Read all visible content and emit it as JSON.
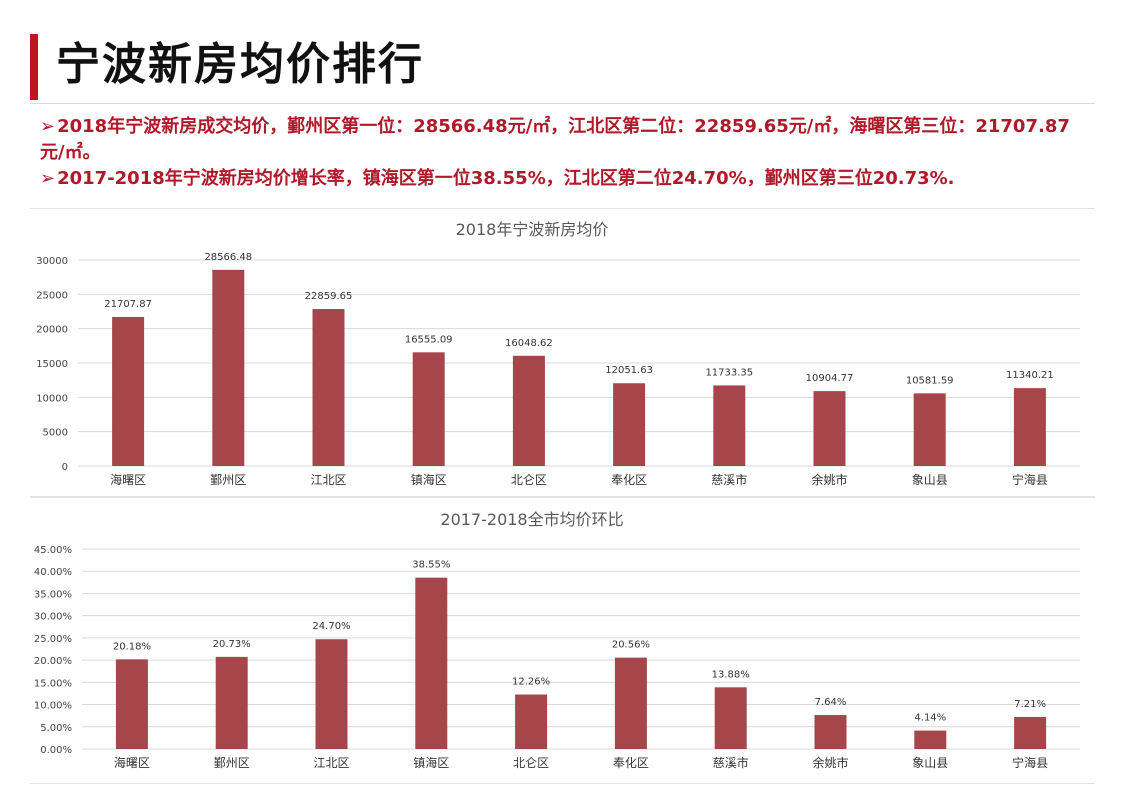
{
  "page": {
    "title": "宁波新房均价排行",
    "bullets": [
      "2018年宁波新房成交均价，鄞州区第一位：28566.48元/㎡，江北区第二位：22859.65元/㎡，海曙区第三位：21707.87元/㎡。",
      "2017-2018年宁波新房均价增长率，镇海区第一位38.55%，江北区第二位24.70%，鄞州区第三位20.73%."
    ],
    "bullet_mark": "➢"
  },
  "colors": {
    "bar": "#a5474a",
    "accent": "#c0151f",
    "bullet_text": "#b0192a",
    "grid": "#d9d9d9"
  },
  "chart_data": [
    {
      "type": "bar",
      "title": "2018年宁波新房均价",
      "categories": [
        "海曙区",
        "鄞州区",
        "江北区",
        "镇海区",
        "北仑区",
        "奉化区",
        "慈溪市",
        "余姚市",
        "象山县",
        "宁海县"
      ],
      "values": [
        21707.87,
        28566.48,
        22859.65,
        16555.09,
        16048.62,
        12051.63,
        11733.35,
        10904.77,
        10581.59,
        11340.21
      ],
      "labels": [
        "21707.87",
        "28566.48",
        "22859.65",
        "16555.09",
        "16048.62",
        "12051.63",
        "11733.35",
        "10904.77",
        "10581.59",
        "11340.21"
      ],
      "yticks": [
        "0",
        "5000",
        "10000",
        "15000",
        "20000",
        "25000",
        "30000"
      ],
      "ylim": [
        0,
        30000
      ],
      "grid": true
    },
    {
      "type": "bar",
      "title": "2017-2018全市均价环比",
      "categories": [
        "海曙区",
        "鄞州区",
        "江北区",
        "镇海区",
        "北仑区",
        "奉化区",
        "慈溪市",
        "余姚市",
        "象山县",
        "宁海县"
      ],
      "values": [
        20.18,
        20.73,
        24.7,
        38.55,
        12.26,
        20.56,
        13.88,
        7.64,
        4.14,
        7.21
      ],
      "labels": [
        "20.18%",
        "20.73%",
        "24.70%",
        "38.55%",
        "12.26%",
        "20.56%",
        "13.88%",
        "7.64%",
        "4.14%",
        "7.21%"
      ],
      "yticks": [
        "0.00%",
        "5.00%",
        "10.00%",
        "15.00%",
        "20.00%",
        "25.00%",
        "30.00%",
        "35.00%",
        "40.00%",
        "45.00%"
      ],
      "ylim": [
        0,
        45
      ],
      "grid": true
    }
  ]
}
